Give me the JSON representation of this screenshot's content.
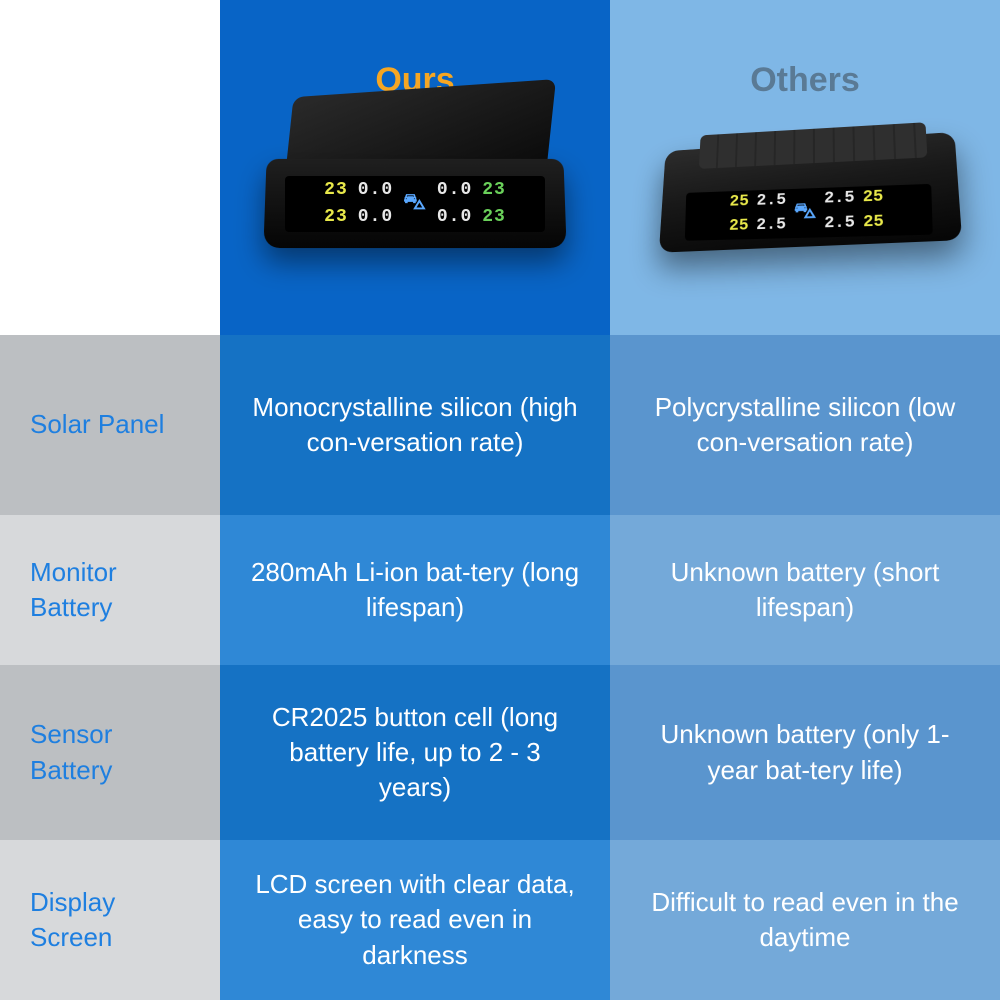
{
  "colors": {
    "label_bg_odd": "#bcbfc2",
    "label_bg_even": "#d7d9db",
    "ours_bg_odd": "#1572c4",
    "ours_bg_even": "#2f88d6",
    "others_bg_odd": "#5a95ce",
    "others_bg_even": "#74a9d9",
    "header_ours_bg": "#0864c6",
    "header_others_bg": "#7fb7e6",
    "header_label_bg": "#ffffff",
    "ours_title_color": "#f5a623",
    "others_title_color": "#5a7a95",
    "label_text_color": "#1e7fe0",
    "ours_text_color": "#ffffff",
    "others_text_color": "#ffffff"
  },
  "headers": {
    "ours": "Ours",
    "others": "Others"
  },
  "rows": [
    {
      "label": "Solar Panel",
      "ours": "Monocrystalline silicon (high con-versation rate)",
      "others": "Polycrystalline silicon (low con-versation rate)"
    },
    {
      "label": "Monitor Battery",
      "ours": "280mAh Li-ion bat-tery (long lifespan)",
      "others": "Unknown battery (short lifespan)"
    },
    {
      "label": "Sensor Battery",
      "ours": "CR2025 button cell (long battery life, up to 2 - 3 years)",
      "others": "Unknown battery (only 1-year bat-tery life)"
    },
    {
      "label": "Display Screen",
      "ours": "LCD screen with clear data, easy to read even in darkness",
      "others": "Difficult to read even in the daytime"
    }
  ],
  "devices": {
    "ours_digits": {
      "temp": "23",
      "bar": "0.0"
    },
    "others_digits": {
      "temp": "25",
      "bar": "2.5"
    }
  }
}
